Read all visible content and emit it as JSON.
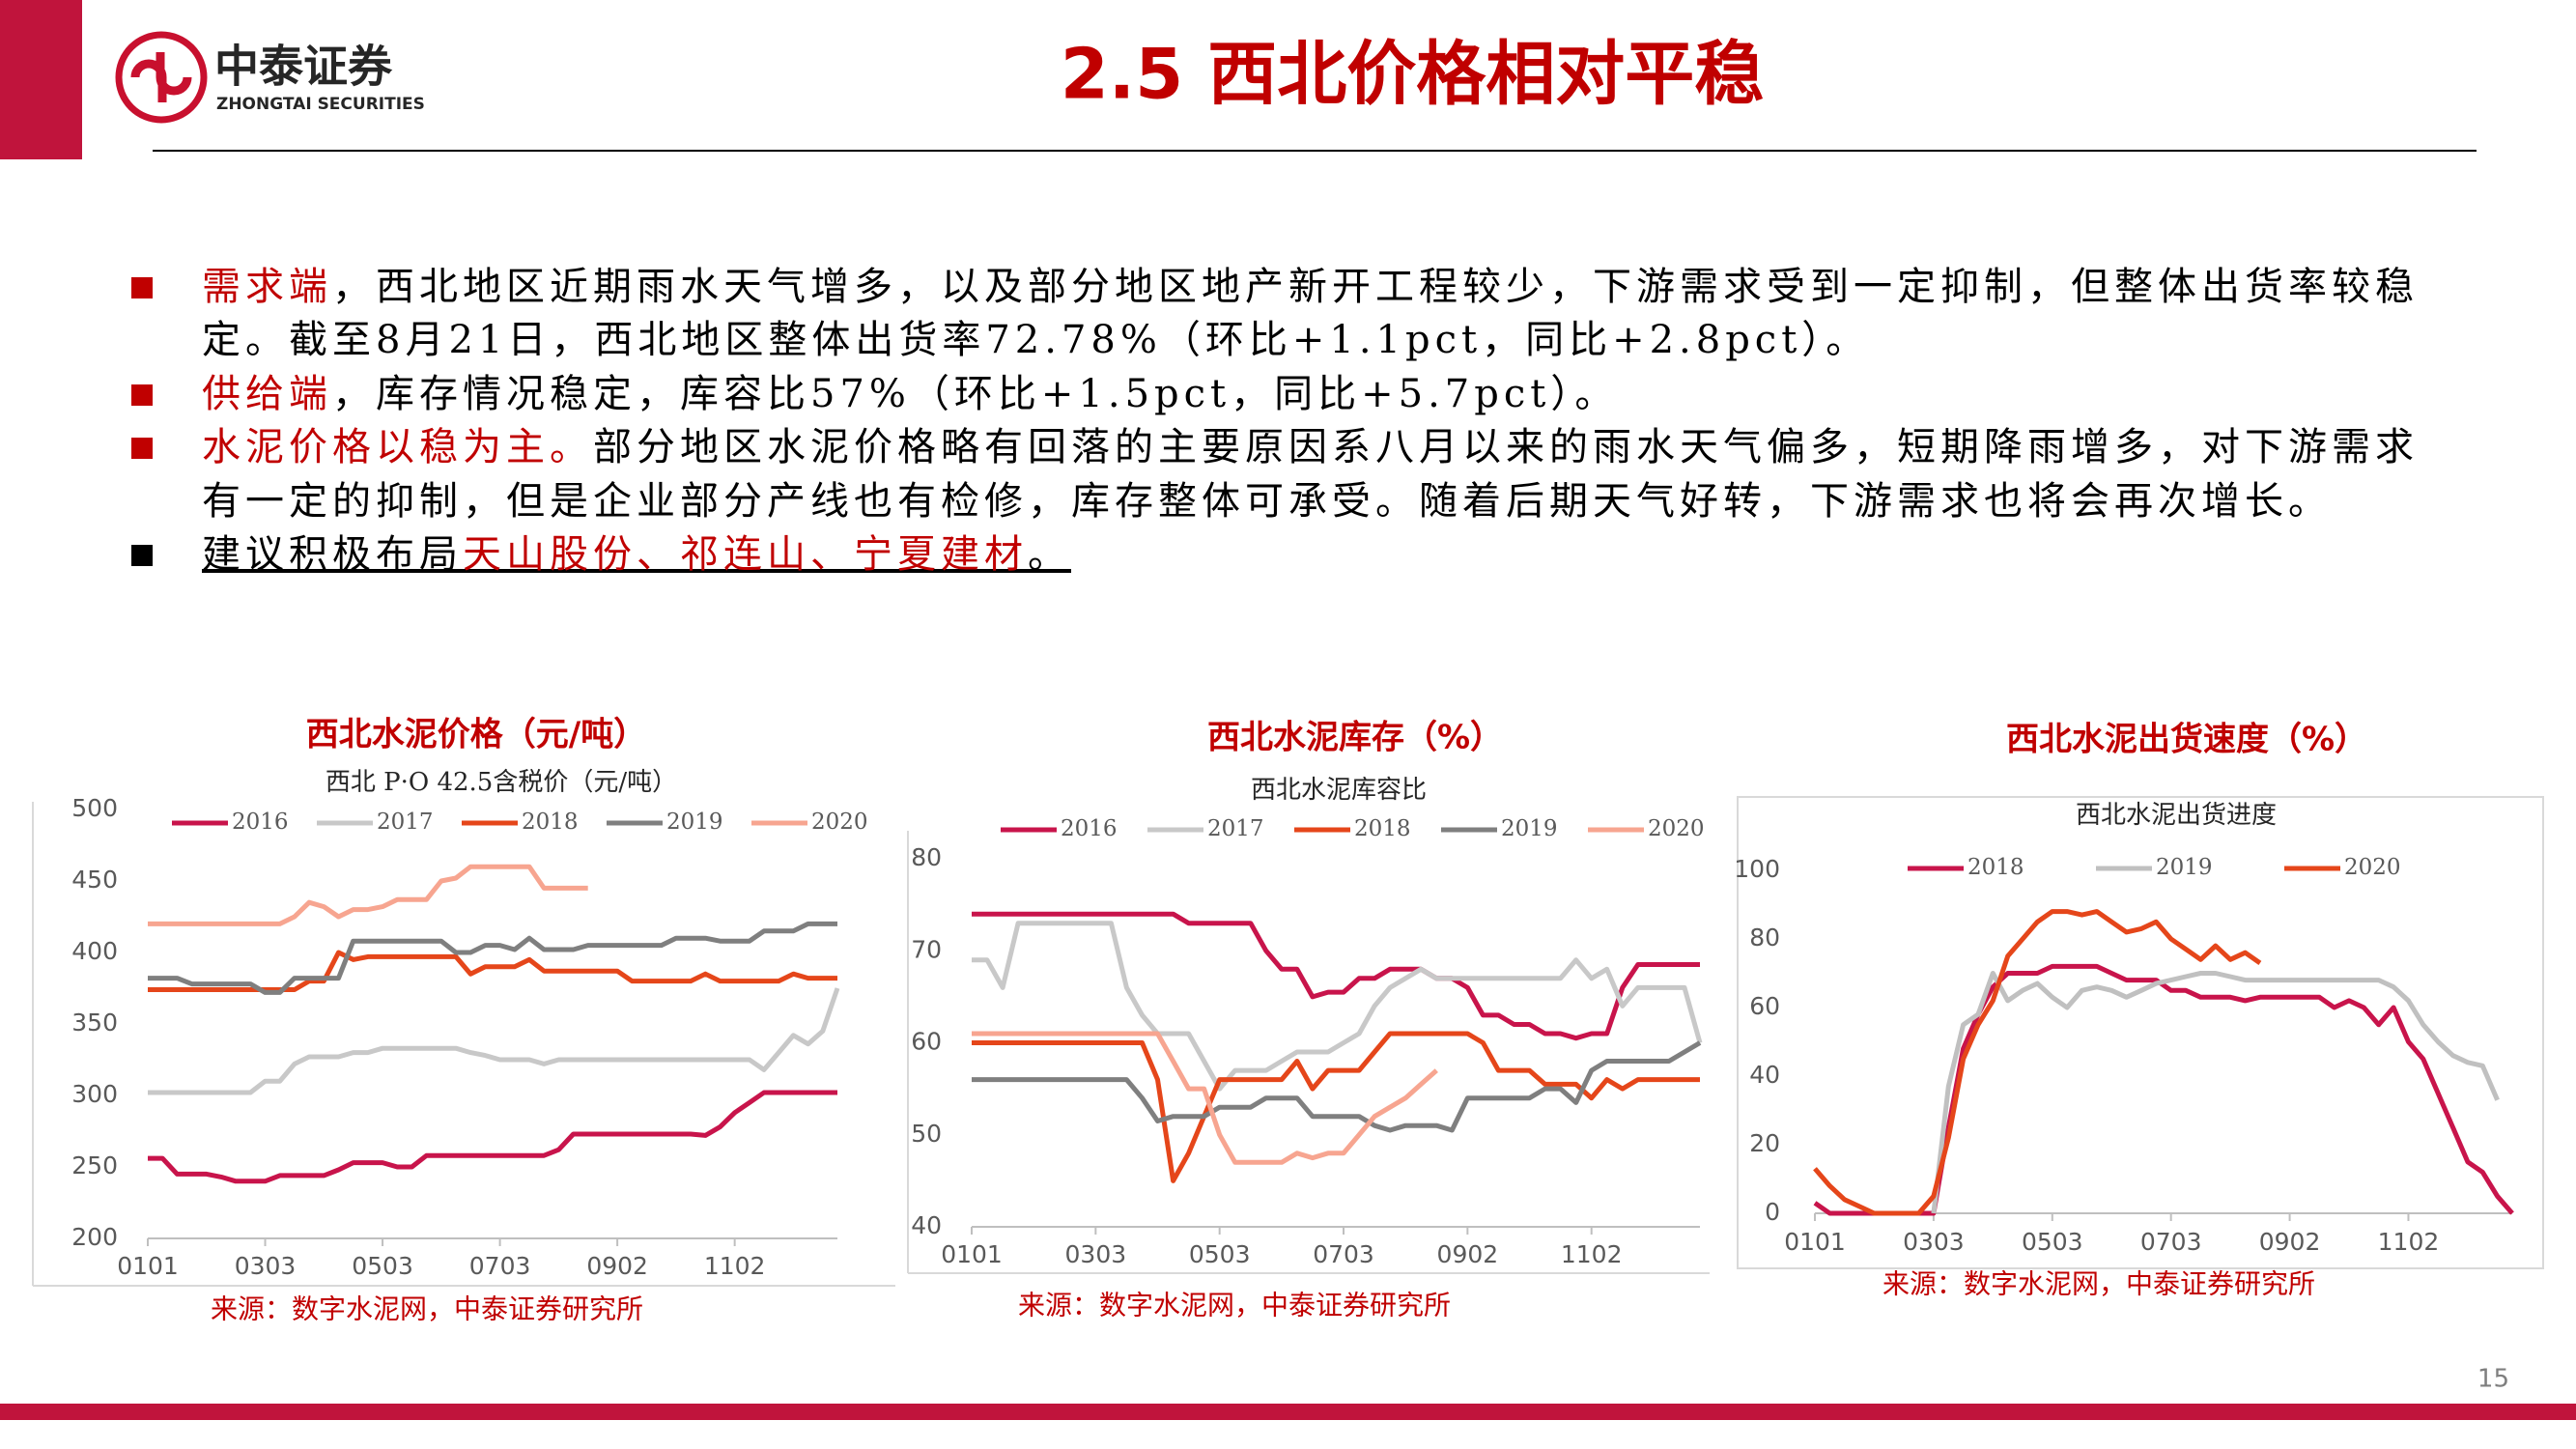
{
  "header": {
    "logo_name": "中泰证券",
    "logo_en": "ZHONGTAI SECURITIES",
    "title": "2.5 西北价格相对平稳"
  },
  "bullets": [
    {
      "marker_color": "#c00000",
      "underline": false,
      "parts": [
        {
          "text": "需求端",
          "color": "#c00000"
        },
        {
          "text": "，西北地区近期雨水天气增多，以及部分地区地产新开工程较少，下游需求受到一定抑制，但整体出货率较稳定。截至8月21日，西北地区整体出货率72.78%（环比+1.1pct，同比+2.8pct）。",
          "color": "#000000"
        }
      ]
    },
    {
      "marker_color": "#c00000",
      "underline": false,
      "parts": [
        {
          "text": "供给端",
          "color": "#c00000"
        },
        {
          "text": "，库存情况稳定，库容比57%（环比+1.5pct，同比+5.7pct）。",
          "color": "#000000"
        }
      ]
    },
    {
      "marker_color": "#c00000",
      "underline": false,
      "parts": [
        {
          "text": "水泥价格以稳为主。",
          "color": "#c00000"
        },
        {
          "text": "部分地区水泥价格略有回落的主要原因系八月以来的雨水天气偏多，短期降雨增多，对下游需求有一定的抑制，但是企业部分产线也有检修，库存整体可承受。随着后期天气好转，下游需求也将会再次增长。",
          "color": "#000000"
        }
      ]
    },
    {
      "marker_color": "#000000",
      "underline": true,
      "parts": [
        {
          "text": "建议积极布局",
          "color": "#000000"
        },
        {
          "text": "天山股份、祁连山、宁夏建材",
          "color": "#c00000"
        },
        {
          "text": "。",
          "color": "#000000"
        }
      ]
    }
  ],
  "chart_data": [
    {
      "type": "line",
      "title": "西北水泥价格（元/吨）",
      "subtitle": "西北 P·O 42.5含税价（元/吨）",
      "source": "来源：数字水泥网，中泰证券研究所",
      "categories": [
        "0101",
        null,
        null,
        null,
        null,
        null,
        null,
        null,
        "0303",
        null,
        null,
        null,
        null,
        null,
        null,
        null,
        "0503",
        null,
        null,
        null,
        null,
        null,
        null,
        null,
        "0703",
        null,
        null,
        null,
        null,
        null,
        null,
        null,
        "0902",
        null,
        null,
        null,
        null,
        null,
        null,
        null,
        "1102",
        null,
        null,
        null,
        null,
        null,
        null,
        null
      ],
      "ylim": [
        200,
        500
      ],
      "yticks": [
        200,
        250,
        300,
        350,
        400,
        450,
        500
      ],
      "grid": false,
      "series": [
        {
          "name": "2016",
          "color": "#c8144b",
          "values": [
            256,
            256,
            245,
            245,
            245,
            243,
            240,
            240,
            240,
            244,
            244,
            244,
            244,
            248,
            253,
            253,
            253,
            250,
            250,
            258,
            258,
            258,
            258,
            258,
            258,
            258,
            258,
            258,
            262,
            273,
            273,
            273,
            273,
            273,
            273,
            273,
            273,
            273,
            272,
            278,
            288,
            295,
            302,
            302,
            302,
            302,
            302,
            302
          ]
        },
        {
          "name": "2017",
          "color": "#c8c8c8",
          "values": [
            302,
            302,
            302,
            302,
            302,
            302,
            302,
            302,
            310,
            310,
            322,
            327,
            327,
            327,
            330,
            330,
            333,
            333,
            333,
            333,
            333,
            333,
            330,
            328,
            325,
            325,
            325,
            322,
            325,
            325,
            325,
            325,
            325,
            325,
            325,
            325,
            325,
            325,
            325,
            325,
            325,
            325,
            318,
            330,
            342,
            336,
            345,
            375
          ]
        },
        {
          "name": "2018",
          "color": "#e5461a",
          "values": [
            374,
            374,
            374,
            374,
            374,
            374,
            374,
            374,
            374,
            374,
            374,
            380,
            380,
            400,
            395,
            397,
            397,
            397,
            397,
            397,
            397,
            397,
            385,
            390,
            390,
            390,
            395,
            387,
            387,
            387,
            387,
            387,
            387,
            380,
            380,
            380,
            380,
            380,
            385,
            380,
            380,
            380,
            380,
            380,
            385,
            382,
            382,
            382
          ]
        },
        {
          "name": "2019",
          "color": "#7f7f7f",
          "values": [
            382,
            382,
            382,
            378,
            378,
            378,
            378,
            378,
            372,
            372,
            382,
            382,
            382,
            382,
            408,
            408,
            408,
            408,
            408,
            408,
            408,
            400,
            400,
            405,
            405,
            402,
            410,
            402,
            402,
            402,
            405,
            405,
            405,
            405,
            405,
            405,
            410,
            410,
            410,
            408,
            408,
            408,
            415,
            415,
            415,
            420,
            420,
            420
          ]
        },
        {
          "name": "2020",
          "color": "#f7a590",
          "values": [
            420,
            420,
            420,
            420,
            420,
            420,
            420,
            420,
            420,
            420,
            425,
            435,
            432,
            425,
            430,
            430,
            432,
            437,
            437,
            437,
            450,
            452,
            460,
            460,
            460,
            460,
            460,
            445,
            445,
            445,
            445,
            null,
            null,
            null,
            null,
            null,
            null,
            null,
            null,
            null,
            null,
            null,
            null,
            null,
            null,
            null,
            null,
            null
          ]
        }
      ]
    },
    {
      "type": "line",
      "title": "西北水泥库存（%）",
      "subtitle": "西北水泥库容比",
      "source": "来源：数字水泥网，中泰证券研究所",
      "categories": [
        "0101",
        null,
        null,
        null,
        null,
        null,
        null,
        null,
        "0303",
        null,
        null,
        null,
        null,
        null,
        null,
        null,
        "0503",
        null,
        null,
        null,
        null,
        null,
        null,
        null,
        "0703",
        null,
        null,
        null,
        null,
        null,
        null,
        null,
        "0902",
        null,
        null,
        null,
        null,
        null,
        null,
        null,
        "1102",
        null,
        null,
        null,
        null,
        null,
        null,
        null
      ],
      "ylim": [
        40,
        80
      ],
      "yticks": [
        40,
        50,
        60,
        70,
        80
      ],
      "grid": false,
      "series": [
        {
          "name": "2016",
          "color": "#c8144b",
          "values": [
            74,
            74,
            74,
            74,
            74,
            74,
            74,
            74,
            74,
            74,
            74,
            74,
            74,
            74,
            73,
            73,
            73,
            73,
            73,
            70,
            68,
            68,
            65,
            65.5,
            65.5,
            67,
            67,
            68,
            68,
            68,
            67,
            67,
            66,
            63,
            63,
            62,
            62,
            61,
            61,
            60.5,
            61,
            61,
            66,
            68.5,
            68.5,
            68.5,
            68.5,
            68.5
          ]
        },
        {
          "name": "2017",
          "color": "#c8c8c8",
          "values": [
            69,
            69,
            66,
            73,
            73,
            73,
            73,
            73,
            73,
            73,
            66,
            63,
            61,
            61,
            61,
            58,
            55,
            57,
            57,
            57,
            58,
            59,
            59,
            59,
            60,
            61,
            64,
            66,
            67,
            68,
            67,
            67,
            67,
            67,
            67,
            67,
            67,
            67,
            67,
            69,
            67,
            68,
            64,
            66,
            66,
            66,
            66,
            60
          ]
        },
        {
          "name": "2018",
          "color": "#e5461a",
          "values": [
            60,
            60,
            60,
            60,
            60,
            60,
            60,
            60,
            60,
            60,
            60,
            60,
            56,
            45,
            48,
            52,
            56,
            56,
            56,
            56,
            56,
            58,
            55,
            57,
            57,
            57,
            59,
            61,
            61,
            61,
            61,
            61,
            61,
            60,
            57,
            57,
            57,
            55.5,
            55.5,
            55.5,
            54,
            56,
            55,
            56,
            56,
            56,
            56,
            56
          ]
        },
        {
          "name": "2019",
          "color": "#7f7f7f",
          "values": [
            56,
            56,
            56,
            56,
            56,
            56,
            56,
            56,
            56,
            56,
            56,
            54,
            51.5,
            52,
            52,
            52,
            53,
            53,
            53,
            54,
            54,
            54,
            52,
            52,
            52,
            52,
            51,
            50.5,
            51,
            51,
            51,
            50.5,
            54,
            54,
            54,
            54,
            54,
            55,
            55,
            53.5,
            57,
            58,
            58,
            58,
            58,
            58,
            59,
            60
          ]
        },
        {
          "name": "2020",
          "color": "#f7a590",
          "values": [
            61,
            61,
            61,
            61,
            61,
            61,
            61,
            61,
            61,
            61,
            61,
            61,
            61,
            58,
            55,
            55,
            50,
            47,
            47,
            47,
            47,
            48,
            47.5,
            48,
            48,
            50,
            52,
            53,
            54,
            55.5,
            57,
            null,
            null,
            null,
            null,
            null,
            null,
            null,
            null,
            null,
            null,
            null,
            null,
            null,
            null,
            null,
            null,
            null
          ]
        }
      ]
    },
    {
      "type": "line",
      "title": "西北水泥出货速度（%）",
      "subtitle": "西北水泥出货进度",
      "source": "来源：数字水泥网，中泰证券研究所",
      "categories": [
        "0101",
        null,
        null,
        null,
        null,
        null,
        null,
        null,
        "0303",
        null,
        null,
        null,
        null,
        null,
        null,
        null,
        "0503",
        null,
        null,
        null,
        null,
        null,
        null,
        null,
        "0703",
        null,
        null,
        null,
        null,
        null,
        null,
        null,
        "0902",
        null,
        null,
        null,
        null,
        null,
        null,
        null,
        "1102",
        null,
        null,
        null,
        null,
        null,
        null,
        null
      ],
      "ylim": [
        0,
        100
      ],
      "yticks": [
        0,
        20,
        40,
        60,
        80,
        100
      ],
      "grid": false,
      "series": [
        {
          "name": "2018",
          "color": "#c8144b",
          "values": [
            3,
            0,
            0,
            0,
            0,
            0,
            0,
            0,
            0,
            25,
            48,
            58,
            66,
            70,
            70,
            70,
            72,
            72,
            72,
            72,
            70,
            68,
            68,
            68,
            65,
            65,
            63,
            63,
            63,
            62,
            63,
            63,
            63,
            63,
            63,
            60,
            62,
            60,
            55,
            60,
            50,
            45,
            35,
            25,
            15,
            12,
            5,
            0
          ]
        },
        {
          "name": "2019",
          "color": "#c0c0c0",
          "values": [
            null,
            null,
            null,
            null,
            null,
            null,
            null,
            null,
            0,
            37,
            55,
            58,
            70,
            62,
            65,
            67,
            63,
            60,
            65,
            66,
            65,
            63,
            65,
            67,
            68,
            69,
            70,
            70,
            69,
            68,
            68,
            68,
            68,
            68,
            68,
            68,
            68,
            68,
            68,
            66,
            62,
            55,
            50,
            46,
            44,
            43,
            33,
            null
          ]
        },
        {
          "name": "2020",
          "color": "#e5461a",
          "values": [
            13,
            8,
            4,
            2,
            0,
            0,
            0,
            0,
            5,
            22,
            45,
            55,
            62,
            75,
            80,
            85,
            88,
            88,
            87,
            88,
            85,
            82,
            83,
            85,
            80,
            77,
            74,
            78,
            74,
            76,
            73,
            null,
            null,
            null,
            null,
            null,
            null,
            null,
            null,
            null,
            null,
            null,
            null,
            null,
            null,
            null,
            null,
            null
          ]
        }
      ]
    }
  ],
  "page_number": 15
}
